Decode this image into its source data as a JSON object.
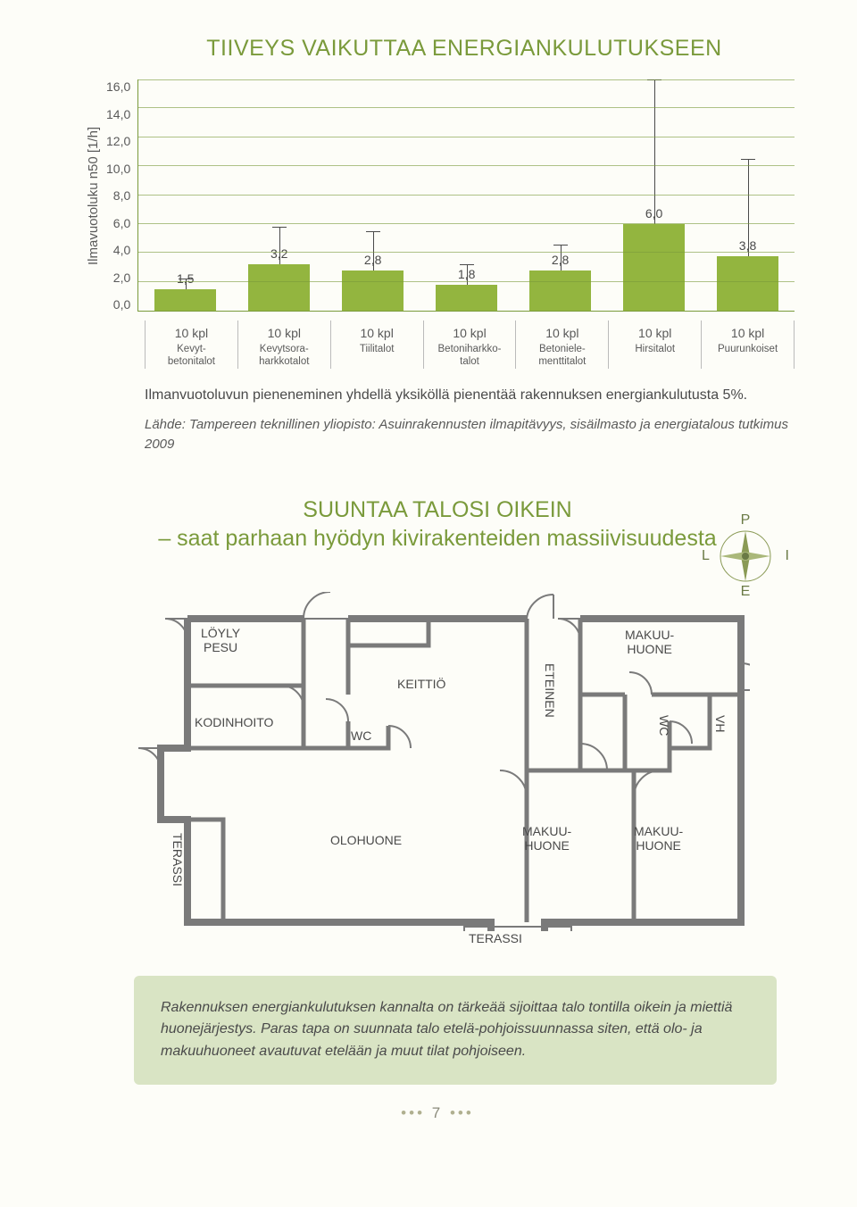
{
  "chart": {
    "title": "TIIVEYS VAIKUTTAA ENERGIANKULUTUKSEEN",
    "ylabel": "Ilmavuotoluku n50 [1/h]",
    "ylim_max": 16.0,
    "yticks": [
      "16,0",
      "14,0",
      "12,0",
      "10,0",
      "8,0",
      "6,0",
      "4,0",
      "2,0",
      "0,0"
    ],
    "count_label": "10 kpl",
    "bar_color": "#93b53f",
    "grid_color": "#7a9a3b",
    "series": [
      {
        "cat": "Kevyt-\nbetonitalot",
        "value": 1.5,
        "label": "1,5",
        "err_low": 1.0,
        "err_high": 2.2
      },
      {
        "cat": "Kevytsora-\nharkkotalot",
        "value": 3.2,
        "label": "3,2",
        "err_low": 1.3,
        "err_high": 5.8
      },
      {
        "cat": "Tiilitalot",
        "value": 2.8,
        "label": "2,8",
        "err_low": 1.0,
        "err_high": 5.5
      },
      {
        "cat": "Betoniharkko-\ntalot",
        "value": 1.8,
        "label": "1,8",
        "err_low": 0.9,
        "err_high": 3.2
      },
      {
        "cat": "Betoniele-\nmenttitalot",
        "value": 2.8,
        "label": "2,8",
        "err_low": 1.5,
        "err_high": 4.6
      },
      {
        "cat": "Hirsitalot",
        "value": 6.0,
        "label": "6,0",
        "err_low": 2.0,
        "err_high": 16.0
      },
      {
        "cat": "Puurunkoiset",
        "value": 3.8,
        "label": "3,8",
        "err_low": 1.0,
        "err_high": 10.5
      }
    ],
    "note": "Ilmanvuotoluvun pieneneminen yhdellä yksiköllä pienentää rakennuksen energiankulutusta 5%.",
    "source": "Lähde: Tampereen teknillinen yliopisto: Asuinrakennusten ilmapitävyys, sisäilmasto ja energiatalous tutkimus 2009"
  },
  "plan": {
    "title": "SUUNTAA TALOSI OIKEIN",
    "subtitle": "– saat parhaan hyödyn kivirakenteiden massiivisuudesta",
    "compass": {
      "n": "P",
      "s": "E",
      "w": "L",
      "e": "I"
    },
    "rooms": {
      "loyly": "LÖYLY",
      "pesu": "PESU",
      "kodinhoito": "KODINHOITO",
      "wc": "WC",
      "keittio": "KEITTIÖ",
      "eteinen": "ETEINEN",
      "makuu": "MAKUU-\nHUONE",
      "vh": "VH",
      "terassi": "TERASSI",
      "olohuone": "OLOHUONE"
    }
  },
  "callout": "Rakennuksen energiankulutuksen kannalta on tärkeää sijoittaa talo tontilla oikein ja miettiä huonejärjestys. Paras tapa on suunnata talo etelä-pohjoissuunnassa siten, että olo- ja makuuhuoneet avautuvat etelään ja muut tilat pohjoiseen.",
  "page_number": "7"
}
